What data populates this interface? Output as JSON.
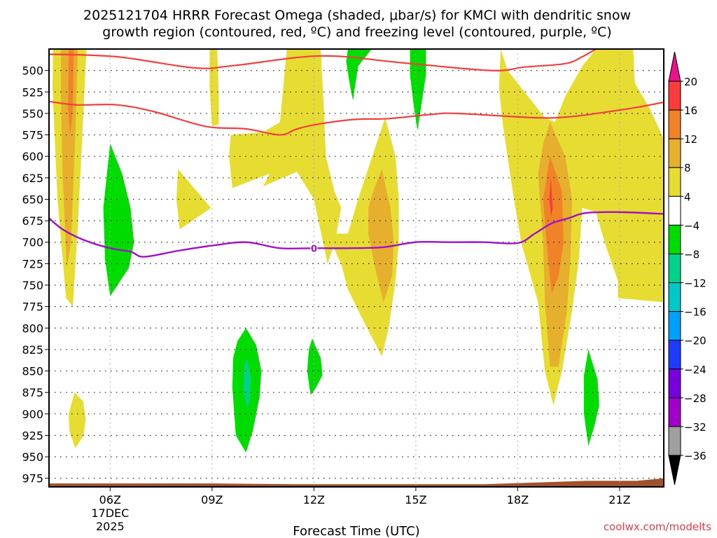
{
  "chart_data": {
    "type": "heatmap",
    "title_line1": "2025121704 HRRR Forecast Omega (shaded, μbar/s) for KMCI with dendritic snow",
    "title_line2": "growth region (contoured, red, ºC) and freezing level (contoured, purple, ºC)",
    "xlabel": "Forecast Time (UTC)",
    "ylabel": "",
    "credit": "coolwx.com/modelts",
    "x_range_hours": [
      4.2,
      22.3
    ],
    "y_range_hpa": [
      475,
      985
    ],
    "y_inverted": true,
    "grid": "dotted",
    "x_ticks": [
      {
        "hour": 6,
        "label": "06Z",
        "sublabels": [
          "17DEC",
          "2025"
        ]
      },
      {
        "hour": 9,
        "label": "09Z",
        "sublabels": []
      },
      {
        "hour": 12,
        "label": "12Z",
        "sublabels": []
      },
      {
        "hour": 15,
        "label": "15Z",
        "sublabels": []
      },
      {
        "hour": 18,
        "label": "18Z",
        "sublabels": []
      },
      {
        "hour": 21,
        "label": "21Z",
        "sublabels": []
      }
    ],
    "y_ticks": [
      500,
      525,
      550,
      575,
      600,
      625,
      650,
      675,
      700,
      725,
      750,
      775,
      800,
      825,
      850,
      875,
      900,
      925,
      950,
      975
    ],
    "colorbar": {
      "labels": [
        "20",
        "16",
        "12",
        "8",
        "4",
        "−4",
        "−8",
        "−12",
        "−16",
        "−20",
        "−24",
        "−28",
        "−32",
        "−36"
      ],
      "over_color": "#e8128c",
      "under_color": "#000000",
      "bins": [
        {
          "range": [
            16,
            20
          ],
          "color": "#fa3c3c"
        },
        {
          "range": [
            12,
            16
          ],
          "color": "#f08228"
        },
        {
          "range": [
            8,
            12
          ],
          "color": "#e6af2d"
        },
        {
          "range": [
            4,
            8
          ],
          "color": "#e6dc32"
        },
        {
          "range": [
            -4,
            4
          ],
          "color": "#ffffff"
        },
        {
          "range": [
            -8,
            -4
          ],
          "color": "#00dc00"
        },
        {
          "range": [
            -12,
            -8
          ],
          "color": "#00d28c"
        },
        {
          "range": [
            -16,
            -12
          ],
          "color": "#00c8c8"
        },
        {
          "range": [
            -20,
            -16
          ],
          "color": "#00a0ff"
        },
        {
          "range": [
            -24,
            -20
          ],
          "color": "#1e3cff"
        },
        {
          "range": [
            -28,
            -24
          ],
          "color": "#7800dc"
        },
        {
          "range": [
            -32,
            -28
          ],
          "color": "#a000c8"
        },
        {
          "range": [
            -36,
            -32
          ],
          "color": "#a0a0a0"
        }
      ]
    },
    "omega_regions": [
      {
        "name": "early-column-4",
        "color": "#e6dc32",
        "points": [
          [
            4.32,
            475
          ],
          [
            5.3,
            475
          ],
          [
            5.2,
            560
          ],
          [
            5.05,
            680
          ],
          [
            4.9,
            775
          ],
          [
            4.7,
            765
          ],
          [
            4.45,
            650
          ],
          [
            4.3,
            520
          ]
        ]
      },
      {
        "name": "early-column-8",
        "color": "#e6af2d",
        "points": [
          [
            4.55,
            475
          ],
          [
            5.05,
            475
          ],
          [
            4.98,
            570
          ],
          [
            4.85,
            700
          ],
          [
            4.72,
            730
          ],
          [
            4.6,
            620
          ],
          [
            4.55,
            530
          ]
        ]
      },
      {
        "name": "early-column-12",
        "color": "#f08228",
        "points": [
          [
            4.78,
            475
          ],
          [
            4.93,
            475
          ],
          [
            4.9,
            545
          ],
          [
            4.82,
            575
          ],
          [
            4.76,
            545
          ]
        ]
      },
      {
        "name": "blob-4-900",
        "color": "#e6dc32",
        "points": [
          [
            4.95,
            875
          ],
          [
            5.2,
            885
          ],
          [
            5.28,
            905
          ],
          [
            5.22,
            925
          ],
          [
            4.97,
            940
          ],
          [
            4.8,
            920
          ],
          [
            4.78,
            900
          ]
        ]
      },
      {
        "name": "green-06z",
        "color": "#00dc00",
        "points": [
          [
            6.0,
            585
          ],
          [
            6.35,
            620
          ],
          [
            6.6,
            660
          ],
          [
            6.7,
            700
          ],
          [
            6.55,
            730
          ],
          [
            6.0,
            763
          ],
          [
            5.85,
            720
          ],
          [
            5.8,
            660
          ]
        ]
      },
      {
        "name": "triangle-08z",
        "color": "#e6dc32",
        "points": [
          [
            8.0,
            615
          ],
          [
            8.97,
            660
          ],
          [
            8.05,
            685
          ],
          [
            7.95,
            650
          ]
        ]
      },
      {
        "name": "sliver-09z",
        "color": "#e6dc32",
        "points": [
          [
            8.93,
            475
          ],
          [
            9.15,
            475
          ],
          [
            9.2,
            530
          ],
          [
            9.2,
            563
          ],
          [
            9.0,
            565
          ],
          [
            8.93,
            520
          ]
        ]
      },
      {
        "name": "big-middle-4",
        "color": "#e6dc32",
        "points": [
          [
            11.2,
            475
          ],
          [
            12.2,
            475
          ],
          [
            12.3,
            550
          ],
          [
            12.35,
            600
          ],
          [
            12.6,
            640
          ],
          [
            12.8,
            660
          ],
          [
            12.62,
            700
          ],
          [
            12.4,
            725
          ],
          [
            12.0,
            650
          ],
          [
            11.5,
            618
          ],
          [
            10.5,
            635
          ],
          [
            10.7,
            620
          ],
          [
            9.6,
            637
          ],
          [
            9.5,
            600
          ],
          [
            9.55,
            575
          ],
          [
            10.5,
            572
          ],
          [
            11.0,
            560
          ]
        ]
      },
      {
        "name": "lower-middle-4",
        "color": "#e6dc32",
        "points": [
          [
            12.0,
            650
          ],
          [
            12.5,
            700
          ],
          [
            12.8,
            725
          ],
          [
            13.0,
            755
          ],
          [
            13.5,
            795
          ],
          [
            14.0,
            833
          ],
          [
            14.2,
            800
          ],
          [
            14.4,
            745
          ],
          [
            14.5,
            700
          ],
          [
            14.5,
            650
          ],
          [
            14.4,
            600
          ],
          [
            14.1,
            555
          ],
          [
            13.8,
            590
          ],
          [
            13.3,
            650
          ],
          [
            13.0,
            690
          ],
          [
            12.6,
            690
          ]
        ]
      },
      {
        "name": "lower-middle-8",
        "color": "#e6af2d",
        "points": [
          [
            14.0,
            615
          ],
          [
            14.25,
            660
          ],
          [
            14.35,
            700
          ],
          [
            14.3,
            740
          ],
          [
            14.05,
            770
          ],
          [
            13.8,
            730
          ],
          [
            13.6,
            690
          ],
          [
            13.6,
            660
          ],
          [
            13.75,
            640
          ]
        ]
      },
      {
        "name": "green-13z",
        "color": "#00dc00",
        "points": [
          [
            13.0,
            475
          ],
          [
            13.7,
            475
          ],
          [
            13.3,
            495
          ],
          [
            13.15,
            535
          ],
          [
            13.05,
            515
          ],
          [
            12.95,
            490
          ]
        ]
      },
      {
        "name": "green-15z",
        "color": "#00dc00",
        "points": [
          [
            14.83,
            475
          ],
          [
            15.3,
            475
          ],
          [
            15.3,
            505
          ],
          [
            15.2,
            530
          ],
          [
            15.05,
            570
          ],
          [
            14.95,
            545
          ],
          [
            14.83,
            505
          ]
        ]
      },
      {
        "name": "green-10z-850",
        "color": "#00dc00",
        "points": [
          [
            10.0,
            800
          ],
          [
            10.3,
            820
          ],
          [
            10.45,
            850
          ],
          [
            10.4,
            880
          ],
          [
            10.2,
            920
          ],
          [
            10.0,
            945
          ],
          [
            9.7,
            925
          ],
          [
            9.6,
            870
          ],
          [
            9.62,
            835
          ],
          [
            9.75,
            815
          ]
        ]
      },
      {
        "name": "teal-10z-850",
        "color": "#00d28c",
        "points": [
          [
            10.02,
            835
          ],
          [
            10.15,
            860
          ],
          [
            10.1,
            885
          ],
          [
            10.03,
            895
          ],
          [
            9.93,
            870
          ],
          [
            9.95,
            845
          ]
        ]
      },
      {
        "name": "green-12z-850",
        "color": "#00dc00",
        "points": [
          [
            11.95,
            812
          ],
          [
            12.2,
            835
          ],
          [
            12.25,
            855
          ],
          [
            12.05,
            870
          ],
          [
            11.9,
            878
          ],
          [
            11.8,
            850
          ],
          [
            11.85,
            825
          ]
        ]
      },
      {
        "name": "big-right-4",
        "color": "#e6dc32",
        "points": [
          [
            17.5,
            475
          ],
          [
            17.7,
            500
          ],
          [
            18.2,
            525
          ],
          [
            18.8,
            555
          ],
          [
            19.1,
            560
          ],
          [
            19.4,
            530
          ],
          [
            19.9,
            495
          ],
          [
            20.3,
            475
          ],
          [
            21.4,
            475
          ],
          [
            21.45,
            515
          ],
          [
            21.9,
            545
          ],
          [
            22.3,
            580
          ],
          [
            22.3,
            770
          ],
          [
            20.95,
            765
          ],
          [
            20.95,
            745
          ],
          [
            20.6,
            705
          ],
          [
            20.3,
            665
          ],
          [
            19.9,
            660
          ],
          [
            19.8,
            720
          ],
          [
            19.6,
            780
          ],
          [
            19.3,
            850
          ],
          [
            19.05,
            890
          ],
          [
            18.8,
            850
          ],
          [
            18.6,
            770
          ],
          [
            18.1,
            700
          ],
          [
            17.85,
            640
          ],
          [
            17.55,
            560
          ],
          [
            17.45,
            520
          ]
        ]
      },
      {
        "name": "big-right-8",
        "color": "#e6af2d",
        "points": [
          [
            18.95,
            560
          ],
          [
            19.4,
            600
          ],
          [
            19.6,
            650
          ],
          [
            19.55,
            720
          ],
          [
            19.45,
            780
          ],
          [
            19.2,
            845
          ],
          [
            18.95,
            845
          ],
          [
            18.8,
            770
          ],
          [
            18.75,
            700
          ],
          [
            18.6,
            620
          ],
          [
            18.75,
            585
          ]
        ]
      },
      {
        "name": "big-right-12",
        "color": "#f08228",
        "points": [
          [
            18.95,
            600
          ],
          [
            19.3,
            640
          ],
          [
            19.35,
            700
          ],
          [
            19.2,
            740
          ],
          [
            19.0,
            760
          ],
          [
            18.85,
            700
          ],
          [
            18.75,
            650
          ]
        ]
      },
      {
        "name": "big-right-16",
        "color": "#fa3c3c",
        "points": [
          [
            18.97,
            625
          ],
          [
            19.03,
            660
          ],
          [
            18.98,
            670
          ],
          [
            18.93,
            650
          ]
        ]
      },
      {
        "name": "green-20z",
        "color": "#00dc00",
        "points": [
          [
            20.08,
            825
          ],
          [
            20.35,
            860
          ],
          [
            20.4,
            890
          ],
          [
            20.25,
            915
          ],
          [
            20.08,
            937
          ],
          [
            19.95,
            900
          ],
          [
            19.95,
            855
          ]
        ]
      }
    ],
    "red_contours_dgz": [
      {
        "name": "dgz-top",
        "points": [
          [
            4.2,
            481
          ],
          [
            6.2,
            484
          ],
          [
            8.5,
            497
          ],
          [
            9.7,
            494
          ],
          [
            12.2,
            483
          ],
          [
            14.6,
            491
          ],
          [
            17.2,
            500
          ],
          [
            18.2,
            496
          ],
          [
            19.4,
            492
          ],
          [
            19.9,
            484
          ],
          [
            20.3,
            475
          ]
        ]
      },
      {
        "name": "dgz-bottom",
        "points": [
          [
            4.2,
            536
          ],
          [
            5.0,
            540
          ],
          [
            6.2,
            540
          ],
          [
            7.3,
            548
          ],
          [
            8.8,
            565
          ],
          [
            10.0,
            568
          ],
          [
            11.0,
            575
          ],
          [
            11.5,
            568
          ],
          [
            12.2,
            562
          ],
          [
            13.2,
            557
          ],
          [
            14.2,
            556
          ],
          [
            15.5,
            551
          ],
          [
            16.2,
            550
          ],
          [
            18.5,
            555
          ],
          [
            19.5,
            554
          ],
          [
            20.5,
            549
          ],
          [
            21.5,
            543
          ],
          [
            22.3,
            537
          ]
        ]
      }
    ],
    "purple_contour_freezing": {
      "label": "0",
      "label_hour": 12,
      "points": [
        [
          4.2,
          672
        ],
        [
          4.6,
          685
        ],
        [
          5.2,
          697
        ],
        [
          6.0,
          707
        ],
        [
          6.6,
          711
        ],
        [
          7.0,
          717
        ],
        [
          8.0,
          710
        ],
        [
          9.0,
          704
        ],
        [
          10.0,
          700
        ],
        [
          11.0,
          707
        ],
        [
          12.0,
          707
        ],
        [
          13.0,
          707
        ],
        [
          14.0,
          706
        ],
        [
          15.0,
          700
        ],
        [
          16.0,
          700
        ],
        [
          17.0,
          700
        ],
        [
          18.0,
          701
        ],
        [
          18.5,
          690
        ],
        [
          19.0,
          678
        ],
        [
          19.5,
          672
        ],
        [
          20.0,
          666
        ],
        [
          21.0,
          665
        ],
        [
          22.3,
          667
        ]
      ]
    },
    "terrain": {
      "color": "#a0522d",
      "points": [
        [
          4.2,
          981
        ],
        [
          9.0,
          981
        ],
        [
          11.5,
          982
        ],
        [
          13.0,
          982
        ],
        [
          17.0,
          982
        ],
        [
          18.5,
          980
        ],
        [
          20.0,
          978
        ],
        [
          21.5,
          978
        ],
        [
          22.3,
          975
        ]
      ]
    }
  }
}
